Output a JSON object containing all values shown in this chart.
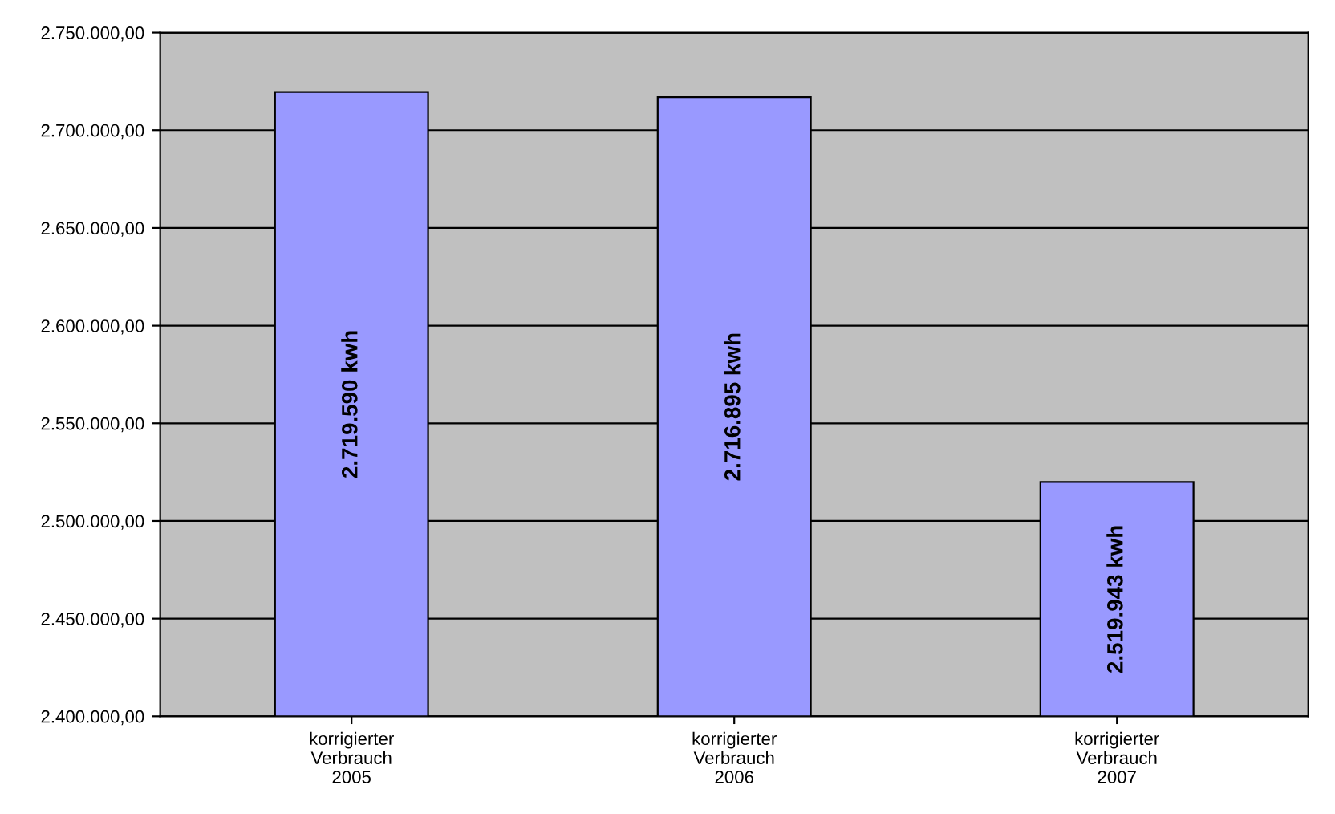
{
  "chart_data": {
    "type": "bar",
    "categories": [
      "korrigierter\nVerbrauch\n2005",
      "korrigierter\nVerbrauch\n2006",
      "korrigierter\nVerbrauch\n2007"
    ],
    "values": [
      2719590,
      2716895,
      2519943
    ],
    "value_labels": [
      "2.719.590 kwh",
      "2.716.895 kwh",
      "2.519.943 kwh"
    ],
    "color": "#9999ff",
    "ylim": [
      2400000,
      2750000
    ],
    "yticks": [
      {
        "value": 2400000,
        "label": "2.400.000,00"
      },
      {
        "value": 2450000,
        "label": "2.450.000,00"
      },
      {
        "value": 2500000,
        "label": "2.500.000,00"
      },
      {
        "value": 2550000,
        "label": "2.550.000,00"
      },
      {
        "value": 2600000,
        "label": "2.600.000,00"
      },
      {
        "value": 2650000,
        "label": "2.650.000,00"
      },
      {
        "value": 2700000,
        "label": "2.700.000,00"
      },
      {
        "value": 2750000,
        "label": "2.750.000,00"
      }
    ],
    "grid": "y",
    "legend": false
  }
}
